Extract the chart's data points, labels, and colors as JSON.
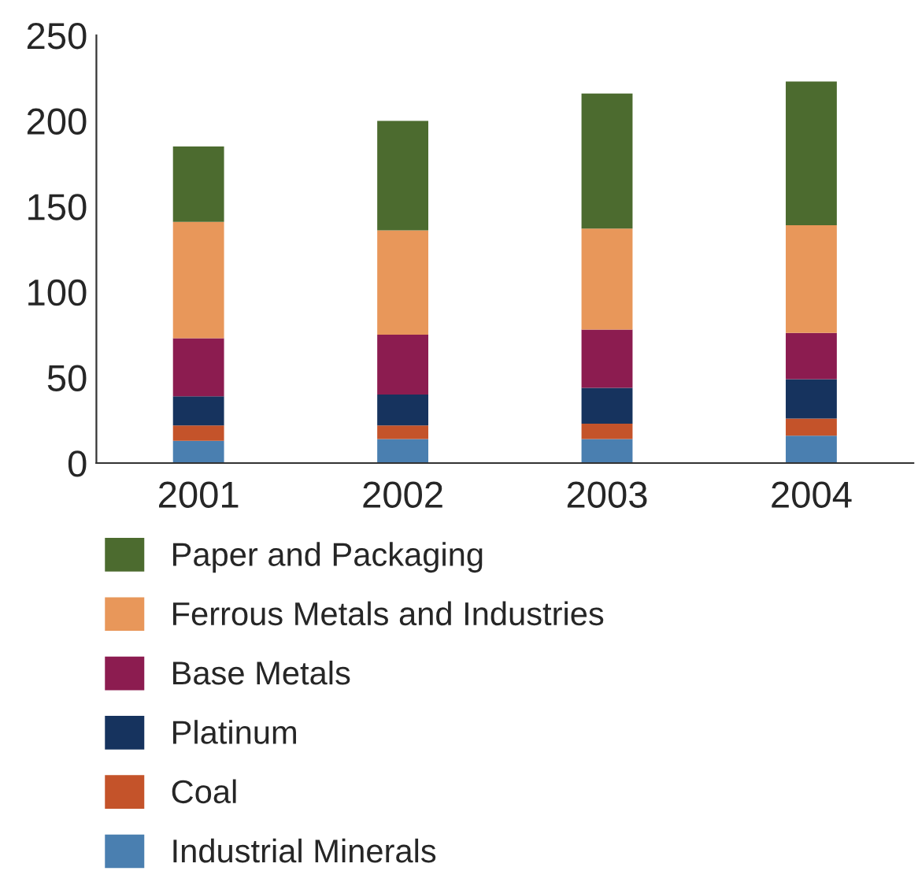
{
  "chart_data": {
    "type": "bar",
    "stacked": true,
    "categories": [
      "2001",
      "2002",
      "2003",
      "2004"
    ],
    "series": [
      {
        "name": "Industrial Minerals",
        "color": "#4a7fb0",
        "values": [
          13,
          14,
          14,
          16
        ]
      },
      {
        "name": "Coal",
        "color": "#c4532a",
        "values": [
          9,
          8,
          9,
          10
        ]
      },
      {
        "name": "Platinum",
        "color": "#16335e",
        "values": [
          17,
          18,
          21,
          23
        ]
      },
      {
        "name": "Base Metals",
        "color": "#8c1c50",
        "values": [
          34,
          35,
          34,
          27
        ]
      },
      {
        "name": "Ferrous Metals and Industries",
        "color": "#e8975a",
        "values": [
          68,
          61,
          59,
          63
        ]
      },
      {
        "name": "Paper and Packaging",
        "color": "#4c6b2f",
        "values": [
          44,
          64,
          79,
          84
        ]
      }
    ],
    "ylim": [
      0,
      250
    ],
    "yticks": [
      0,
      50,
      100,
      150,
      200,
      250
    ],
    "grid": false,
    "legend": "bottom"
  }
}
